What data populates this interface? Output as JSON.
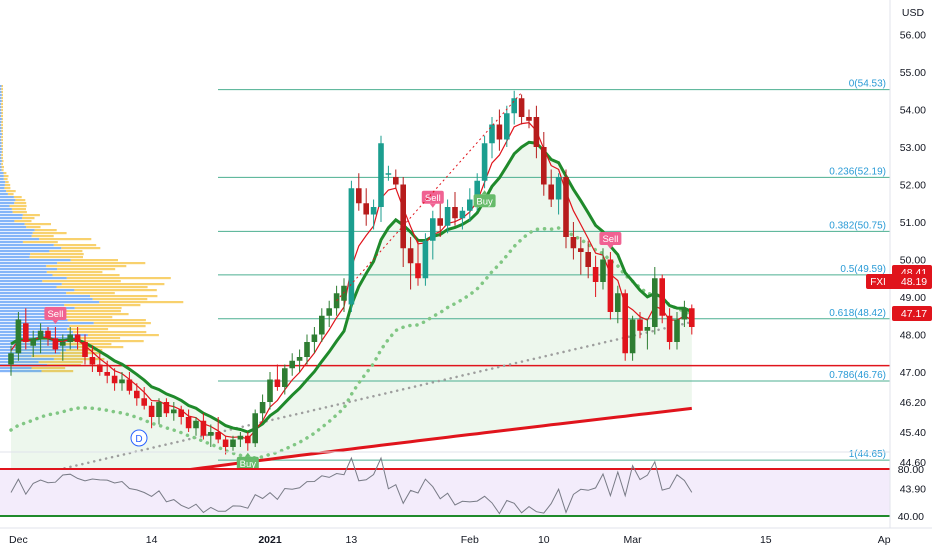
{
  "chart_data": {
    "type": "candlestick",
    "currency": "USD",
    "ticker": "FXI",
    "last_price": "48.19",
    "price_badge": "48.41",
    "support_badge": "47.17",
    "support_level": 47.17,
    "y_ticks": [
      "56.00",
      "55.00",
      "54.00",
      "53.00",
      "52.00",
      "51.00",
      "50.00",
      "49.00",
      "48.00",
      "47.00",
      "46.20",
      "45.40",
      "44.60",
      "43.90"
    ],
    "y_tick_values": [
      56.0,
      55.0,
      54.0,
      53.0,
      52.0,
      51.0,
      50.0,
      49.0,
      48.0,
      47.0,
      46.2,
      45.4,
      44.6,
      43.9
    ],
    "x_ticks": [
      "Dec",
      "14",
      "2021",
      "13",
      "Feb",
      "10",
      "Mar",
      "15",
      "Ap"
    ],
    "x_tick_bars": [
      1,
      19,
      35,
      46,
      62,
      72,
      84,
      102,
      118
    ],
    "fib_levels": [
      {
        "label": "0(54.53)",
        "value": 54.53
      },
      {
        "label": "0.236(52.19)",
        "value": 52.19
      },
      {
        "label": "0.382(50.75)",
        "value": 50.75
      },
      {
        "label": "0.5(49.59)",
        "value": 49.59
      },
      {
        "label": "0.618(48.42)",
        "value": 48.42
      },
      {
        "label": "0.786(46.76)",
        "value": 46.76
      },
      {
        "label": "1(44.65)",
        "value": 44.65
      }
    ],
    "signals": [
      {
        "label": "Sell",
        "bar": 6,
        "type": "sell"
      },
      {
        "label": "Buy",
        "bar": 32,
        "type": "buy"
      },
      {
        "label": "Sell",
        "bar": 57,
        "type": "sell"
      },
      {
        "label": "Buy",
        "bar": 64,
        "type": "buy"
      },
      {
        "label": "Sell",
        "bar": 81,
        "type": "sell"
      }
    ],
    "dividend_marker": "D",
    "candles": [
      [
        47.2,
        47.7,
        46.9,
        47.5
      ],
      [
        47.5,
        48.6,
        47.3,
        48.4
      ],
      [
        48.3,
        48.7,
        47.6,
        47.8
      ],
      [
        47.7,
        48.1,
        47.4,
        47.9
      ],
      [
        47.9,
        48.3,
        47.5,
        48.1
      ],
      [
        48.1,
        48.2,
        47.7,
        47.9
      ],
      [
        47.9,
        48.2,
        47.5,
        47.6
      ],
      [
        47.7,
        48.0,
        47.3,
        47.8
      ],
      [
        47.8,
        48.2,
        47.6,
        48.0
      ],
      [
        48.0,
        48.2,
        47.6,
        47.8
      ],
      [
        47.8,
        48.0,
        47.2,
        47.4
      ],
      [
        47.4,
        47.7,
        47.0,
        47.2
      ],
      [
        47.2,
        47.5,
        46.9,
        47.0
      ],
      [
        47.0,
        47.3,
        46.7,
        46.9
      ],
      [
        46.9,
        47.1,
        46.5,
        46.7
      ],
      [
        46.7,
        47.0,
        46.5,
        46.8
      ],
      [
        46.8,
        47.0,
        46.4,
        46.5
      ],
      [
        46.5,
        46.7,
        46.1,
        46.3
      ],
      [
        46.3,
        46.6,
        46.0,
        46.1
      ],
      [
        46.1,
        46.2,
        45.5,
        45.8
      ],
      [
        45.8,
        46.3,
        45.6,
        46.2
      ],
      [
        46.2,
        46.3,
        45.8,
        45.9
      ],
      [
        45.9,
        46.2,
        45.7,
        46.0
      ],
      [
        46.0,
        46.1,
        45.6,
        45.8
      ],
      [
        45.8,
        46.0,
        45.4,
        45.5
      ],
      [
        45.5,
        45.8,
        45.3,
        45.7
      ],
      [
        45.7,
        45.9,
        45.2,
        45.3
      ],
      [
        45.3,
        45.6,
        45.0,
        45.4
      ],
      [
        45.4,
        45.8,
        45.1,
        45.2
      ],
      [
        45.2,
        45.3,
        44.8,
        45.0
      ],
      [
        45.0,
        45.3,
        44.9,
        45.2
      ],
      [
        45.2,
        45.4,
        45.0,
        45.3
      ],
      [
        45.3,
        45.4,
        44.9,
        45.1
      ],
      [
        45.1,
        46.0,
        45.0,
        45.9
      ],
      [
        45.9,
        46.4,
        45.7,
        46.2
      ],
      [
        46.2,
        47.0,
        46.0,
        46.8
      ],
      [
        46.8,
        47.2,
        46.5,
        46.6
      ],
      [
        46.6,
        47.2,
        46.4,
        47.1
      ],
      [
        47.1,
        47.5,
        46.9,
        47.3
      ],
      [
        47.3,
        47.6,
        47.0,
        47.4
      ],
      [
        47.4,
        48.0,
        47.2,
        47.8
      ],
      [
        47.8,
        48.2,
        47.5,
        48.0
      ],
      [
        48.0,
        48.7,
        47.8,
        48.5
      ],
      [
        48.5,
        48.9,
        48.2,
        48.7
      ],
      [
        48.7,
        49.3,
        48.5,
        49.1
      ],
      [
        48.9,
        49.5,
        48.6,
        49.3
      ],
      [
        48.8,
        52.1,
        48.6,
        51.9
      ],
      [
        51.9,
        52.3,
        51.3,
        51.5
      ],
      [
        51.5,
        51.9,
        50.9,
        51.2
      ],
      [
        51.2,
        51.6,
        50.8,
        51.4
      ],
      [
        51.4,
        53.3,
        51.0,
        53.1
      ],
      [
        52.3,
        52.5,
        52.1,
        52.3
      ],
      [
        52.2,
        52.4,
        51.9,
        52.0
      ],
      [
        52.0,
        52.2,
        49.8,
        50.3
      ],
      [
        50.3,
        50.6,
        49.2,
        49.9
      ],
      [
        49.9,
        50.5,
        49.3,
        49.5
      ],
      [
        49.5,
        50.7,
        49.3,
        50.5
      ],
      [
        50.5,
        51.3,
        50.0,
        51.1
      ],
      [
        51.1,
        51.5,
        50.6,
        50.9
      ],
      [
        50.9,
        51.6,
        50.7,
        51.4
      ],
      [
        51.4,
        51.8,
        50.9,
        51.1
      ],
      [
        51.1,
        51.4,
        50.8,
        51.3
      ],
      [
        51.3,
        51.9,
        51.0,
        51.6
      ],
      [
        51.6,
        52.3,
        51.3,
        52.1
      ],
      [
        52.1,
        53.3,
        51.9,
        53.1
      ],
      [
        53.1,
        53.8,
        52.7,
        53.6
      ],
      [
        53.6,
        54.0,
        52.9,
        53.2
      ],
      [
        53.2,
        54.1,
        53.0,
        53.9
      ],
      [
        53.9,
        54.5,
        53.6,
        54.3
      ],
      [
        54.3,
        54.4,
        53.6,
        53.8
      ],
      [
        53.8,
        54.0,
        53.5,
        53.7
      ],
      [
        53.8,
        54.1,
        52.7,
        53.0
      ],
      [
        53.0,
        53.4,
        51.7,
        52.0
      ],
      [
        52.0,
        52.4,
        51.4,
        51.6
      ],
      [
        51.6,
        52.3,
        51.2,
        52.2
      ],
      [
        52.2,
        52.4,
        50.3,
        50.6
      ],
      [
        50.6,
        51.0,
        50.0,
        50.3
      ],
      [
        50.3,
        50.6,
        49.6,
        50.2
      ],
      [
        50.2,
        50.5,
        49.5,
        49.8
      ],
      [
        49.8,
        50.1,
        49.0,
        49.4
      ],
      [
        49.4,
        50.3,
        49.2,
        50.0
      ],
      [
        50.0,
        50.2,
        48.4,
        48.6
      ],
      [
        48.6,
        49.3,
        48.3,
        49.1
      ],
      [
        49.1,
        49.2,
        47.3,
        47.5
      ],
      [
        47.5,
        48.5,
        47.3,
        48.4
      ],
      [
        48.4,
        48.6,
        47.9,
        48.1
      ],
      [
        48.1,
        48.4,
        47.6,
        48.2
      ],
      [
        48.2,
        49.8,
        48.0,
        49.5
      ],
      [
        49.5,
        49.6,
        48.3,
        48.5
      ],
      [
        48.5,
        48.7,
        47.6,
        47.8
      ],
      [
        47.8,
        48.6,
        47.6,
        48.4
      ],
      [
        48.4,
        48.9,
        48.2,
        48.7
      ],
      [
        48.7,
        48.8,
        48.0,
        48.2
      ]
    ],
    "rsi_levels": [
      "80.00",
      "40.00"
    ],
    "rsi_level_values": [
      80,
      40
    ]
  }
}
